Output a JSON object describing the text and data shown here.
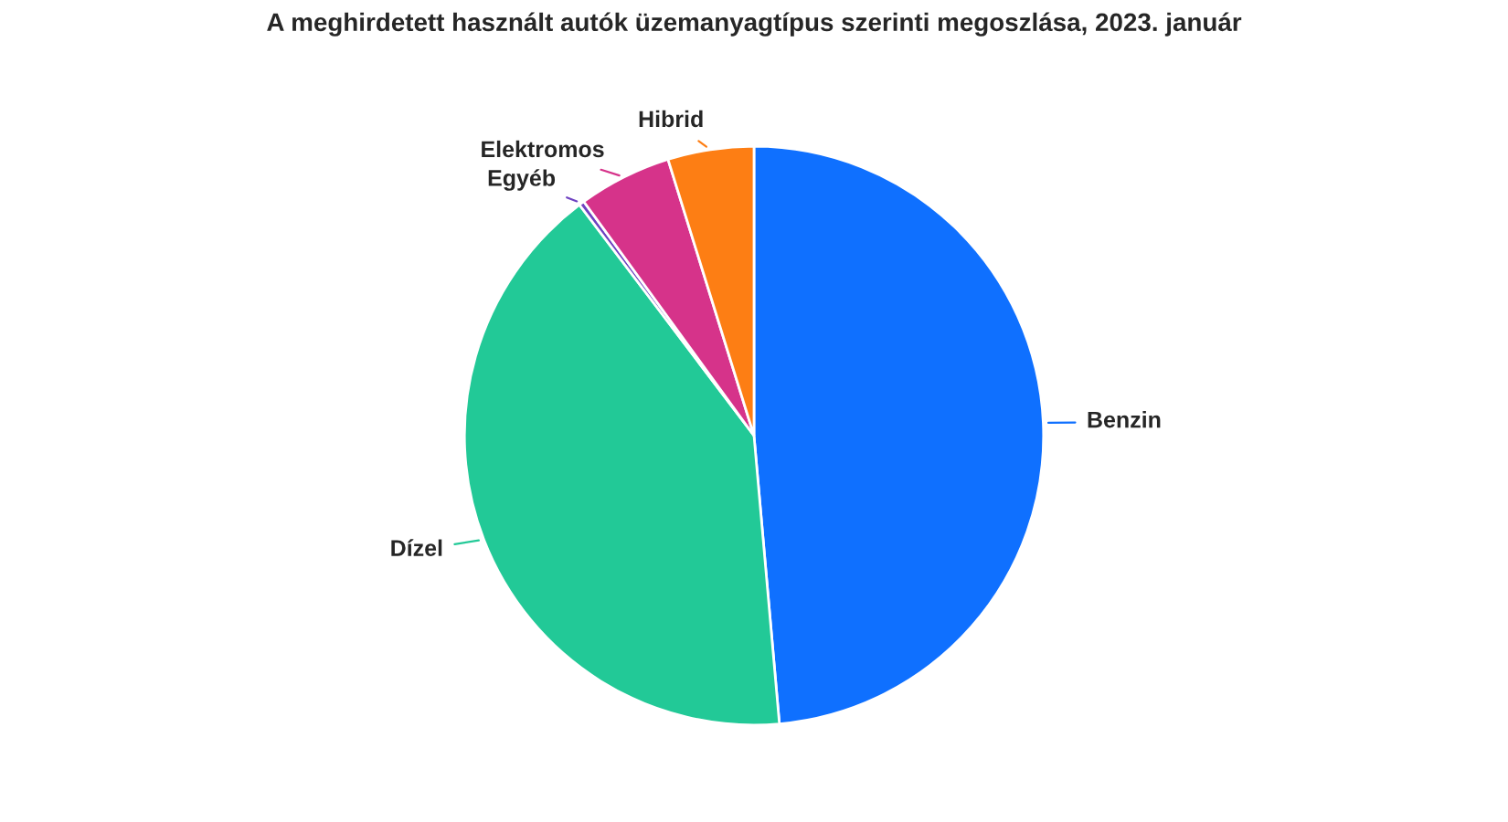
{
  "chart_data": {
    "type": "pie",
    "title": "A meghirdetett használt autók üzemanyagtípus szerinti megoszlása, 2023. január",
    "categories": [
      "Benzin",
      "Dízel",
      "Egyéb",
      "Elektromos",
      "Hibrid"
    ],
    "values": [
      48.6,
      41.1,
      0.3,
      5.2,
      4.8
    ],
    "colors": [
      "#0f70ff",
      "#22c997",
      "#6f42c1",
      "#d6338a",
      "#fd7e14"
    ],
    "legend": false
  }
}
